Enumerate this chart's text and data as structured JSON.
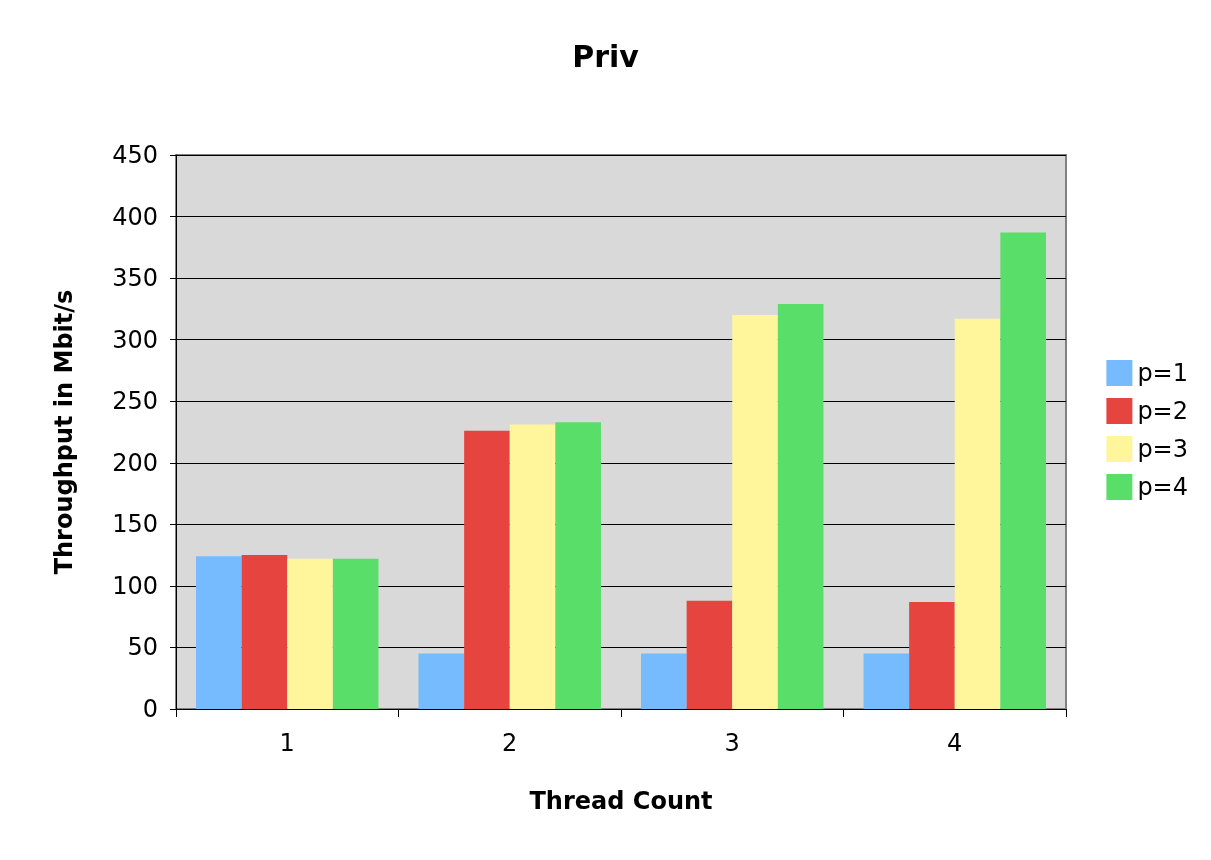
{
  "chart_data": {
    "type": "bar",
    "title": "Priv",
    "xlabel": "Thread Count",
    "ylabel": "Throughput in Mbit/s",
    "categories": [
      "1",
      "2",
      "3",
      "4"
    ],
    "series": [
      {
        "name": "p=1",
        "color": "#77bbff",
        "values": [
          124,
          45,
          45,
          45
        ]
      },
      {
        "name": "p=2",
        "color": "#e5443f",
        "values": [
          125,
          226,
          88,
          87
        ]
      },
      {
        "name": "p=3",
        "color": "#fff59b",
        "values": [
          122,
          231,
          320,
          317
        ]
      },
      {
        "name": "p=4",
        "color": "#5ade6a",
        "values": [
          122,
          233,
          329,
          387
        ]
      }
    ],
    "ylim": [
      0,
      450
    ],
    "yticks": [
      0,
      50,
      100,
      150,
      200,
      250,
      300,
      350,
      400,
      450
    ],
    "grid": "y",
    "legend": "right"
  }
}
